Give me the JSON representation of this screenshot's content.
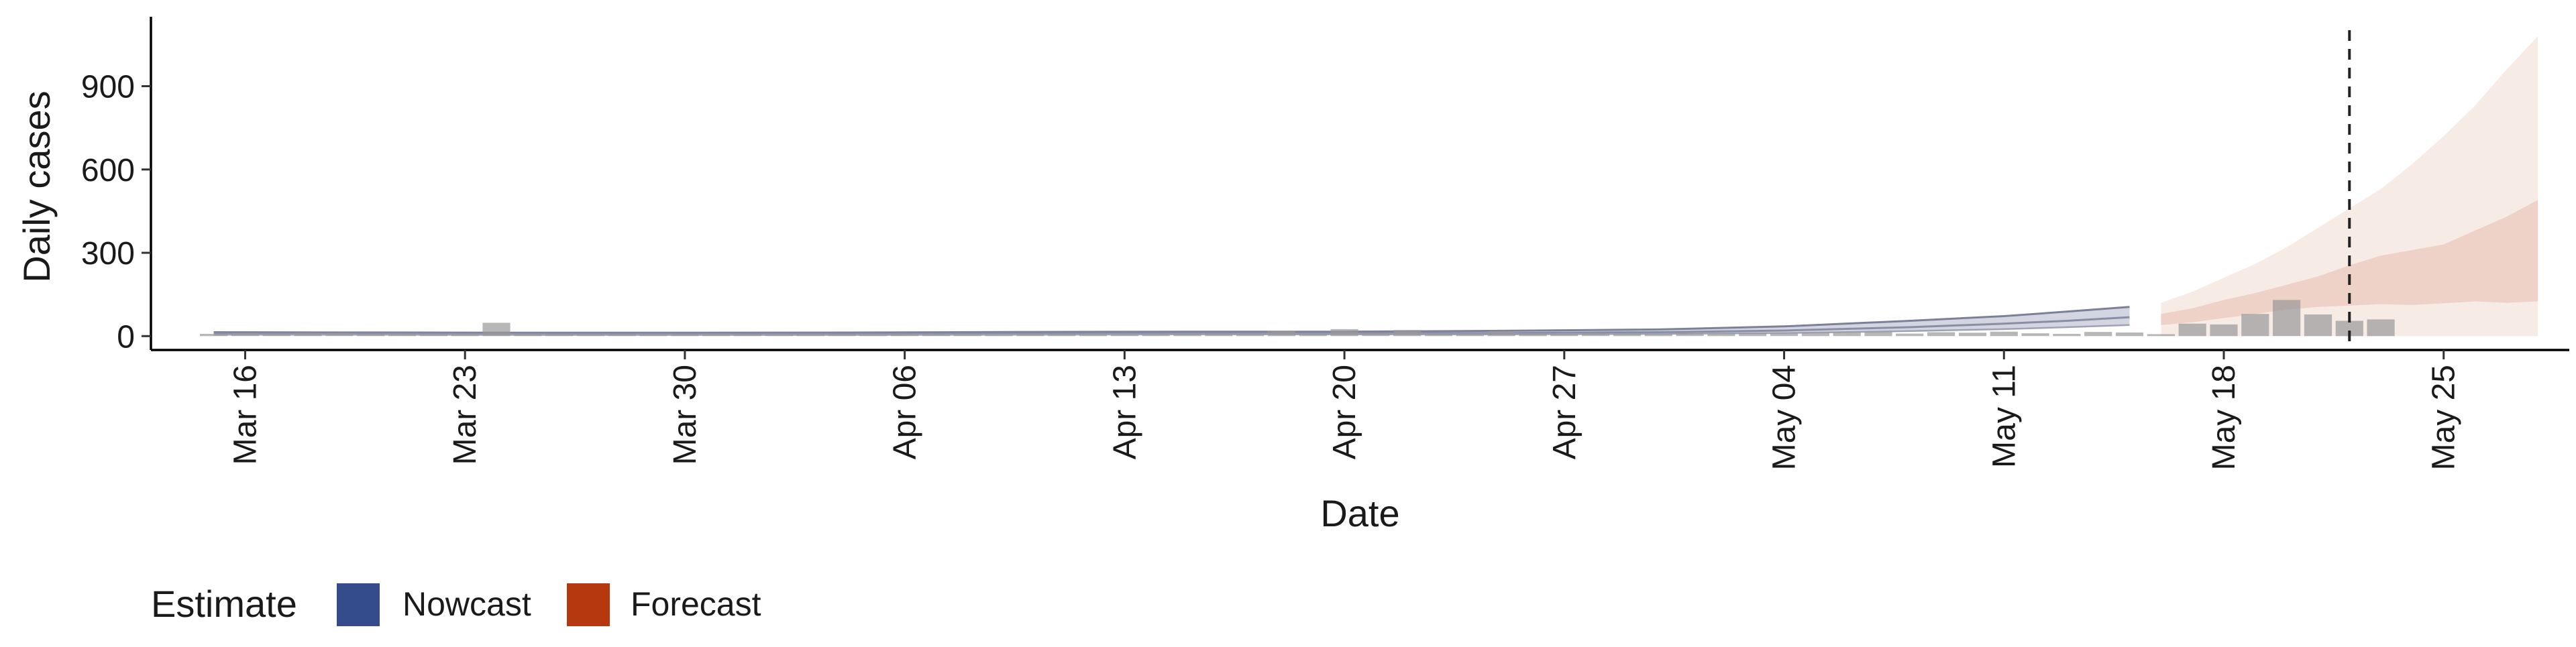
{
  "chart_data": {
    "type": "bar",
    "title": "",
    "xlabel": "Date",
    "ylabel": "Daily cases",
    "x_tick_labels": [
      "Mar 16",
      "Mar 23",
      "Mar 30",
      "Apr 06",
      "Apr 13",
      "Apr 20",
      "Apr 27",
      "May 04",
      "May 11",
      "May 18",
      "May 25"
    ],
    "y_tick_values": [
      0,
      300,
      600,
      900
    ],
    "ylim": [
      -50,
      1150
    ],
    "xlim": [
      "2020-03-13",
      "2020-05-29"
    ],
    "grid": false,
    "legend_position": "bottom-left",
    "legend": {
      "title": "Estimate",
      "items": [
        {
          "name": "Nowcast",
          "color": "#344b8c"
        },
        {
          "name": "Forecast",
          "color": "#b5380e"
        }
      ]
    },
    "forecast_cutoff_date": "2020-05-22",
    "observed_bars": {
      "name": "Daily cases",
      "color": "#999999",
      "data": [
        [
          "2020-03-15",
          8
        ],
        [
          "2020-03-16",
          10
        ],
        [
          "2020-03-17",
          9
        ],
        [
          "2020-03-18",
          11
        ],
        [
          "2020-03-19",
          10
        ],
        [
          "2020-03-20",
          8
        ],
        [
          "2020-03-21",
          9
        ],
        [
          "2020-03-22",
          7
        ],
        [
          "2020-03-23",
          9
        ],
        [
          "2020-03-24",
          48
        ],
        [
          "2020-03-25",
          8
        ],
        [
          "2020-03-26",
          7
        ],
        [
          "2020-03-27",
          6
        ],
        [
          "2020-03-28",
          7
        ],
        [
          "2020-03-29",
          6
        ],
        [
          "2020-03-30",
          7
        ],
        [
          "2020-03-31",
          9
        ],
        [
          "2020-04-01",
          7
        ],
        [
          "2020-04-02",
          6
        ],
        [
          "2020-04-03",
          6
        ],
        [
          "2020-04-04",
          7
        ],
        [
          "2020-04-05",
          5
        ],
        [
          "2020-04-06",
          8
        ],
        [
          "2020-04-07",
          7
        ],
        [
          "2020-04-08",
          8
        ],
        [
          "2020-04-09",
          6
        ],
        [
          "2020-04-10",
          9
        ],
        [
          "2020-04-11",
          8
        ],
        [
          "2020-04-12",
          7
        ],
        [
          "2020-04-13",
          6
        ],
        [
          "2020-04-14",
          7
        ],
        [
          "2020-04-15",
          8
        ],
        [
          "2020-04-16",
          9
        ],
        [
          "2020-04-17",
          7
        ],
        [
          "2020-04-18",
          18
        ],
        [
          "2020-04-19",
          8
        ],
        [
          "2020-04-20",
          25
        ],
        [
          "2020-04-21",
          10
        ],
        [
          "2020-04-22",
          22
        ],
        [
          "2020-04-23",
          8
        ],
        [
          "2020-04-24",
          7
        ],
        [
          "2020-04-25",
          18
        ],
        [
          "2020-04-26",
          9
        ],
        [
          "2020-04-27",
          8
        ],
        [
          "2020-04-28",
          10
        ],
        [
          "2020-04-29",
          9
        ],
        [
          "2020-04-30",
          8
        ],
        [
          "2020-05-01",
          10
        ],
        [
          "2020-05-02",
          9
        ],
        [
          "2020-05-03",
          11
        ],
        [
          "2020-05-04",
          10
        ],
        [
          "2020-05-05",
          12
        ],
        [
          "2020-05-06",
          13
        ],
        [
          "2020-05-07",
          15
        ],
        [
          "2020-05-08",
          9
        ],
        [
          "2020-05-09",
          14
        ],
        [
          "2020-05-10",
          12
        ],
        [
          "2020-05-11",
          16
        ],
        [
          "2020-05-12",
          10
        ],
        [
          "2020-05-13",
          8
        ],
        [
          "2020-05-14",
          15
        ],
        [
          "2020-05-15",
          13
        ],
        [
          "2020-05-16",
          7
        ],
        [
          "2020-05-17",
          45
        ],
        [
          "2020-05-18",
          42
        ],
        [
          "2020-05-19",
          80
        ],
        [
          "2020-05-20",
          130
        ],
        [
          "2020-05-21",
          78
        ],
        [
          "2020-05-22",
          55
        ],
        [
          "2020-05-23",
          60
        ]
      ]
    },
    "nowcast": {
      "name": "Nowcast",
      "color": "#344b8c",
      "date_range": [
        "2020-03-15",
        "2020-05-15"
      ],
      "median": [
        [
          "2020-03-15",
          9
        ],
        [
          "2020-03-20",
          9
        ],
        [
          "2020-03-25",
          8
        ],
        [
          "2020-03-30",
          8
        ],
        [
          "2020-04-05",
          8
        ],
        [
          "2020-04-10",
          9
        ],
        [
          "2020-04-15",
          10
        ],
        [
          "2020-04-20",
          10
        ],
        [
          "2020-04-25",
          11
        ],
        [
          "2020-04-30",
          14
        ],
        [
          "2020-05-04",
          20
        ],
        [
          "2020-05-08",
          32
        ],
        [
          "2020-05-11",
          45
        ],
        [
          "2020-05-13",
          55
        ],
        [
          "2020-05-15",
          68
        ]
      ],
      "upper": [
        [
          "2020-03-15",
          14
        ],
        [
          "2020-03-20",
          13
        ],
        [
          "2020-03-25",
          12
        ],
        [
          "2020-03-30",
          12
        ],
        [
          "2020-04-05",
          13
        ],
        [
          "2020-04-10",
          15
        ],
        [
          "2020-04-15",
          16
        ],
        [
          "2020-04-20",
          16
        ],
        [
          "2020-04-25",
          19
        ],
        [
          "2020-04-30",
          24
        ],
        [
          "2020-05-04",
          35
        ],
        [
          "2020-05-08",
          55
        ],
        [
          "2020-05-11",
          72
        ],
        [
          "2020-05-13",
          88
        ],
        [
          "2020-05-15",
          105
        ]
      ],
      "lower": [
        [
          "2020-03-15",
          5
        ],
        [
          "2020-03-20",
          5
        ],
        [
          "2020-03-25",
          4
        ],
        [
          "2020-03-30",
          4
        ],
        [
          "2020-04-05",
          4
        ],
        [
          "2020-04-10",
          5
        ],
        [
          "2020-04-15",
          6
        ],
        [
          "2020-04-20",
          6
        ],
        [
          "2020-04-25",
          6
        ],
        [
          "2020-04-30",
          8
        ],
        [
          "2020-05-04",
          11
        ],
        [
          "2020-05-08",
          18
        ],
        [
          "2020-05-11",
          25
        ],
        [
          "2020-05-13",
          32
        ],
        [
          "2020-05-15",
          40
        ]
      ]
    },
    "forecast": {
      "name": "Forecast",
      "color": "#b5380e",
      "date_range": [
        "2020-05-16",
        "2020-05-28"
      ],
      "outer_upper": [
        [
          "2020-05-16",
          120
        ],
        [
          "2020-05-17",
          160
        ],
        [
          "2020-05-18",
          210
        ],
        [
          "2020-05-19",
          260
        ],
        [
          "2020-05-20",
          320
        ],
        [
          "2020-05-21",
          390
        ],
        [
          "2020-05-22",
          460
        ],
        [
          "2020-05-23",
          530
        ],
        [
          "2020-05-24",
          620
        ],
        [
          "2020-05-25",
          720
        ],
        [
          "2020-05-26",
          830
        ],
        [
          "2020-05-27",
          960
        ],
        [
          "2020-05-28",
          1080
        ]
      ],
      "outer_lower": [
        [
          "2020-05-16",
          0
        ],
        [
          "2020-05-17",
          0
        ],
        [
          "2020-05-18",
          0
        ],
        [
          "2020-05-19",
          0
        ],
        [
          "2020-05-20",
          0
        ],
        [
          "2020-05-21",
          0
        ],
        [
          "2020-05-22",
          0
        ],
        [
          "2020-05-23",
          0
        ],
        [
          "2020-05-24",
          0
        ],
        [
          "2020-05-25",
          0
        ],
        [
          "2020-05-26",
          0
        ],
        [
          "2020-05-27",
          0
        ],
        [
          "2020-05-28",
          0
        ]
      ],
      "inner_upper": [
        [
          "2020-05-16",
          80
        ],
        [
          "2020-05-17",
          100
        ],
        [
          "2020-05-18",
          130
        ],
        [
          "2020-05-19",
          155
        ],
        [
          "2020-05-20",
          185
        ],
        [
          "2020-05-21",
          215
        ],
        [
          "2020-05-22",
          255
        ],
        [
          "2020-05-23",
          290
        ],
        [
          "2020-05-24",
          310
        ],
        [
          "2020-05-25",
          330
        ],
        [
          "2020-05-26",
          380
        ],
        [
          "2020-05-27",
          430
        ],
        [
          "2020-05-28",
          490
        ]
      ],
      "inner_lower": [
        [
          "2020-05-16",
          40
        ],
        [
          "2020-05-17",
          50
        ],
        [
          "2020-05-18",
          65
        ],
        [
          "2020-05-19",
          80
        ],
        [
          "2020-05-20",
          95
        ],
        [
          "2020-05-21",
          105
        ],
        [
          "2020-05-22",
          110
        ],
        [
          "2020-05-23",
          115
        ],
        [
          "2020-05-24",
          112
        ],
        [
          "2020-05-25",
          118
        ],
        [
          "2020-05-26",
          125
        ],
        [
          "2020-05-27",
          120
        ],
        [
          "2020-05-28",
          125
        ]
      ]
    }
  }
}
